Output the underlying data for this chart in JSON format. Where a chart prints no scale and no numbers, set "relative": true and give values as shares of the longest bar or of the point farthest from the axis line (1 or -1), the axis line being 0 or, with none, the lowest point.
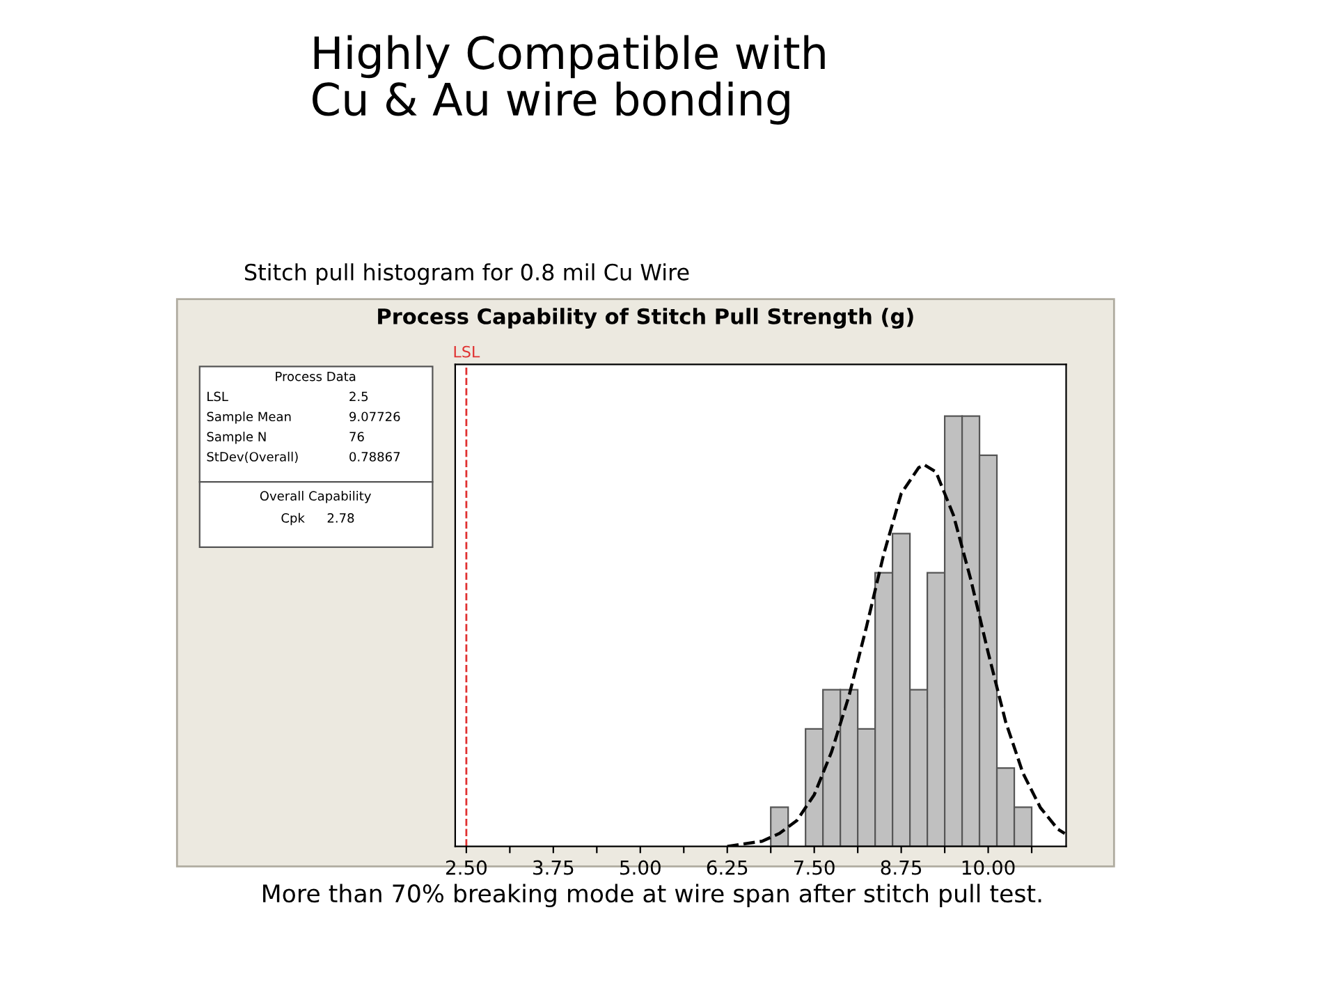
{
  "chart_data": {
    "type": "histogram",
    "relative": true,
    "title": "Highly Compatible with\nCu & Au wire bonding",
    "subtitle": "Process Capability of Stitch Pull Strength (g)",
    "annotations": [
      "Stitch pull histogram for 0.8 mil Cu Wire",
      "Process Data",
      "LSL",
      "2.5",
      "Sample Mean",
      "9.07726",
      "Sample N",
      "76",
      "StDev(Overall)",
      "0.78867",
      "Overall Capability",
      "Cpk",
      "2.78",
      "More than 70% breaking mode at wire span after stitch pull test."
    ],
    "bins": [
      6.875,
      7.125,
      7.375,
      7.625,
      7.875,
      8.125,
      8.375,
      8.625,
      8.875,
      9.125,
      9.375,
      9.625,
      9.875,
      10.125,
      10.375,
      10.625
    ],
    "values": [
      0.091,
      0,
      0.273,
      0.364,
      0.364,
      0.273,
      0.636,
      0.727,
      0.364,
      0.636,
      1,
      1,
      0.909,
      0.182,
      0.091
    ],
    "color": "#c0c0c0",
    "series": [
      {
        "type": "line",
        "color": "#000000",
        "line_style": "dashed",
        "x": [
          6.25,
          6.75,
          7.0,
          7.25,
          7.5,
          7.75,
          8.0,
          8.25,
          8.5,
          8.75,
          9.0,
          9.08,
          9.25,
          9.5,
          9.75,
          10.0,
          10.25,
          10.5,
          10.75,
          11.0,
          11.1
        ],
        "values": [
          0.0,
          0.012,
          0.03,
          0.06,
          0.12,
          0.22,
          0.35,
          0.51,
          0.68,
          0.82,
          0.88,
          0.887,
          0.87,
          0.77,
          0.62,
          0.45,
          0.29,
          0.17,
          0.09,
          0.04,
          0.03
        ]
      }
    ],
    "ref_lines": [
      {
        "axis": "x",
        "value": 2.5,
        "label": "LSL",
        "color": "#e03030",
        "line_style": "dashed"
      }
    ],
    "xlim": [
      2.34,
      11.12
    ],
    "xticks": [
      {
        "value": 2.5,
        "label": "2.50"
      },
      {
        "value": 3.125,
        "label": null
      },
      {
        "value": 3.75,
        "label": "3.75"
      },
      {
        "value": 4.375,
        "label": null
      },
      {
        "value": 5.0,
        "label": "5.00"
      },
      {
        "value": 5.625,
        "label": null
      },
      {
        "value": 6.25,
        "label": "6.25"
      },
      {
        "value": 6.875,
        "label": null
      },
      {
        "value": 7.5,
        "label": "7.50"
      },
      {
        "value": 8.125,
        "label": null
      },
      {
        "value": 8.75,
        "label": "8.75"
      },
      {
        "value": 9.375,
        "label": null
      },
      {
        "value": 10.0,
        "label": "10.00"
      },
      {
        "value": 10.625,
        "label": null
      }
    ]
  }
}
